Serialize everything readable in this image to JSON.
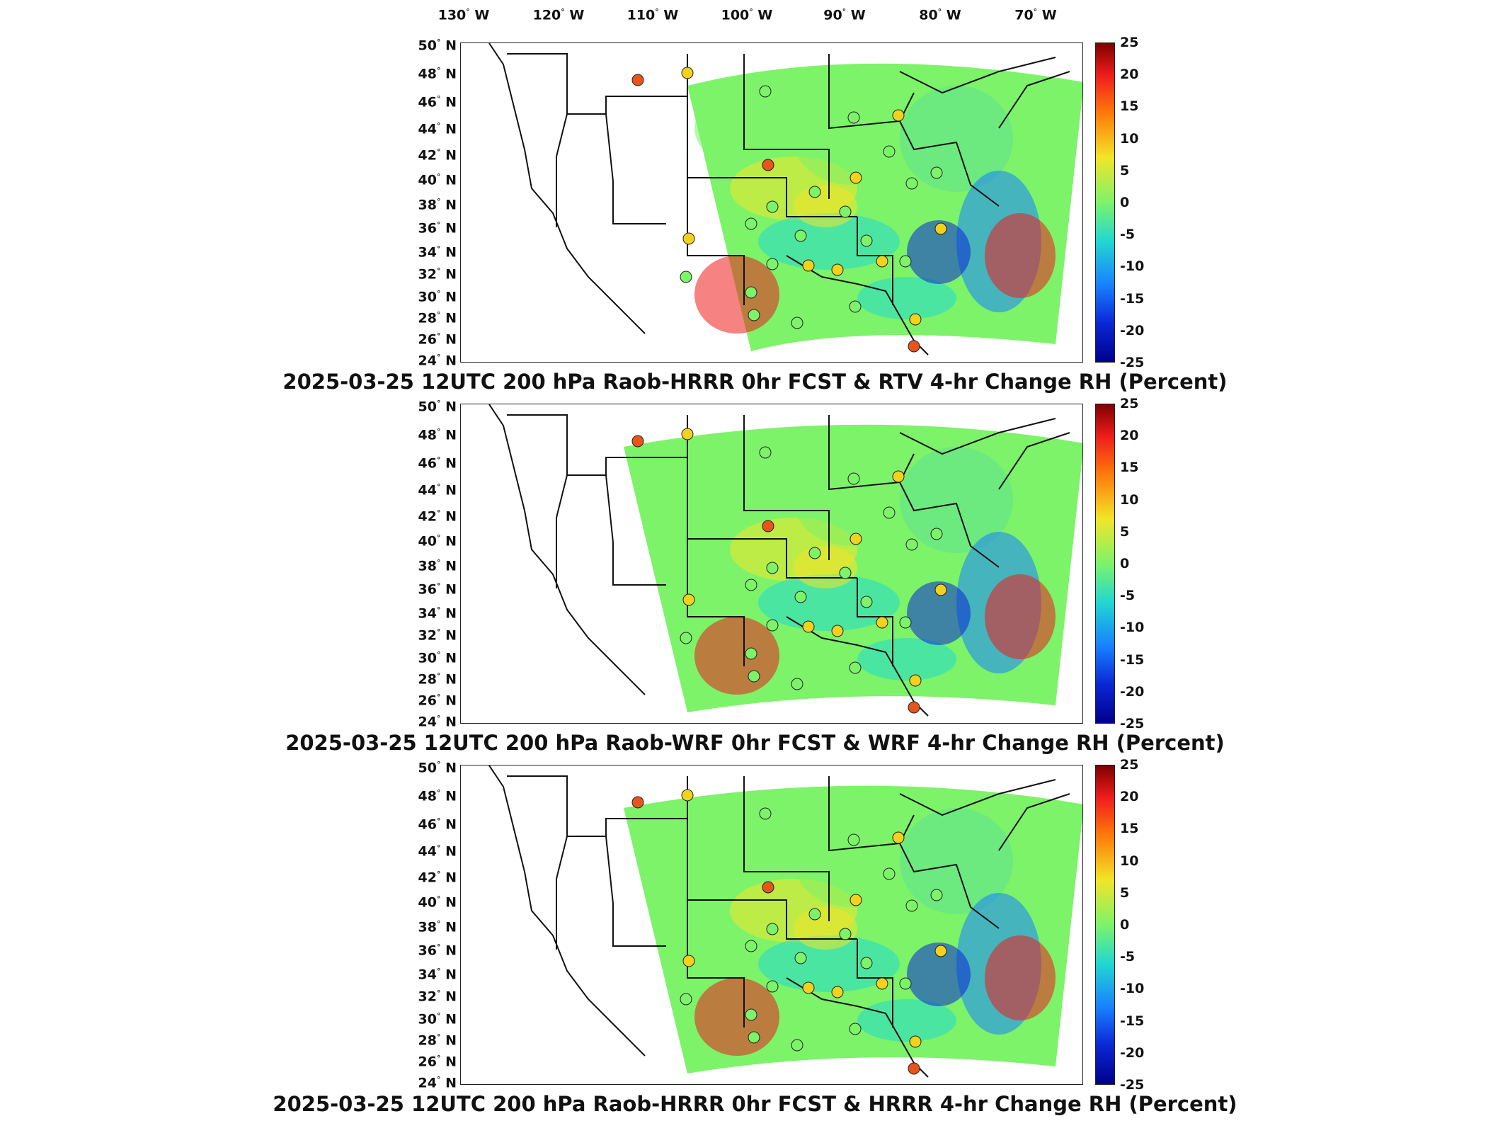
{
  "longitude_labels": [
    "130°W",
    "120°W",
    "110°W",
    "100°W",
    "90°W",
    "80°W",
    "70°W"
  ],
  "longitude_display": [
    {
      "num": "130",
      "dir": "W"
    },
    {
      "num": "120",
      "dir": "W"
    },
    {
      "num": "110",
      "dir": "W"
    },
    {
      "num": "100",
      "dir": "W"
    },
    {
      "num": "90",
      "dir": "W"
    },
    {
      "num": "80",
      "dir": "W"
    },
    {
      "num": "70",
      "dir": "W"
    }
  ],
  "latitude_labels": [
    "50",
    "48",
    "46",
    "44",
    "42",
    "40",
    "38",
    "36",
    "34",
    "32",
    "30",
    "28",
    "26",
    "24"
  ],
  "latitude_suffix": "N",
  "colorbar": {
    "ticks": [
      "25",
      "20",
      "15",
      "10",
      "5",
      "0",
      "-5",
      "-10",
      "-15",
      "-20",
      "-25"
    ],
    "range": [
      -25,
      25
    ],
    "colors": [
      "#7f0000",
      "#ee1c1c",
      "#ff7a0a",
      "#f2e528",
      "#7df36a",
      "#22d8d0",
      "#1780ff",
      "#0b26d4",
      "#00008b"
    ]
  },
  "panels": [
    {
      "caption": "2025-03-25 12UTC 200 hPa Raob-HRRR 0hr FCST & RTV 4-hr Change RH (Percent)"
    },
    {
      "caption": "2025-03-25 12UTC 200 hPa Raob-WRF 0hr FCST & WRF 4-hr Change RH (Percent)"
    },
    {
      "caption": "2025-03-25 12UTC 200 hPa Raob-HRRR 0hr FCST & HRRR 4-hr Change RH (Percent)"
    }
  ]
}
